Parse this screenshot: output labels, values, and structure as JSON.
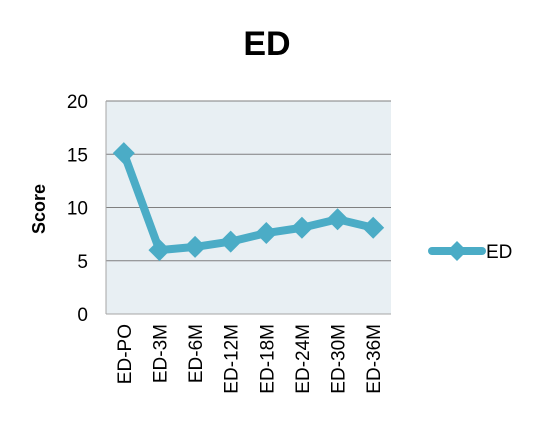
{
  "chart_data": {
    "type": "line",
    "title": "ED",
    "xlabel": "",
    "ylabel": "Score",
    "ylim": [
      0,
      20
    ],
    "yticks": [
      0,
      5,
      10,
      15,
      20
    ],
    "categories": [
      "ED-PO",
      "ED-3M",
      "ED-6M",
      "ED-12M",
      "ED-18M",
      "ED-24M",
      "ED-30M",
      "ED-36M"
    ],
    "series": [
      {
        "name": "ED",
        "values": [
          15.1,
          6.0,
          6.3,
          6.8,
          7.6,
          8.1,
          8.9,
          8.1
        ]
      }
    ],
    "grid": true,
    "legend": "right",
    "colors": {
      "series": "#4bacc6",
      "plot_background": "#e8eff3",
      "gridline": "#7f7f7f",
      "axis": "#a6a6a6"
    }
  }
}
